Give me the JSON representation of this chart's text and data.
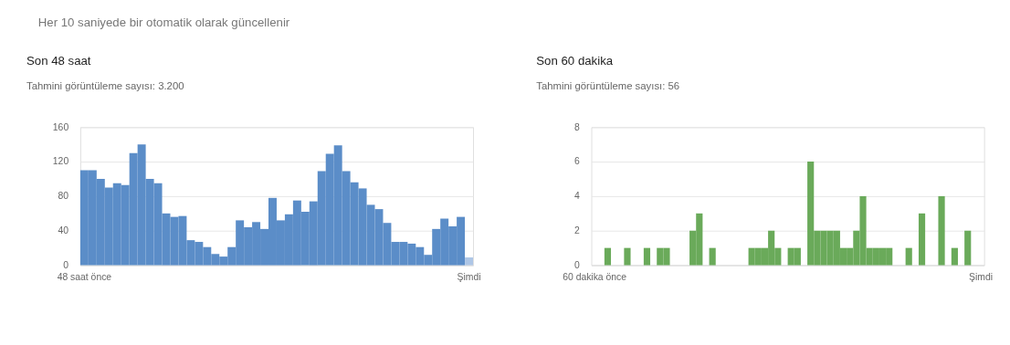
{
  "chart_data": [
    {
      "type": "bar",
      "title": "Son 48 saat",
      "subtitle": "Tahmini görüntüleme sayısı: 3.200",
      "annotations": [
        "Her 10 saniyede bir otomatik olarak güncellenir"
      ],
      "categories": [
        "48 saat önce",
        null,
        null,
        null,
        null,
        null,
        null,
        null,
        null,
        null,
        null,
        null,
        null,
        null,
        null,
        null,
        null,
        null,
        null,
        null,
        null,
        null,
        null,
        null,
        null,
        null,
        null,
        null,
        null,
        null,
        null,
        null,
        null,
        null,
        null,
        null,
        null,
        null,
        null,
        null,
        null,
        null,
        null,
        null,
        null,
        null,
        null,
        "Şimdi"
      ],
      "values": [
        110,
        110,
        100,
        90,
        95,
        93,
        130,
        140,
        100,
        95,
        60,
        56,
        57,
        29,
        27,
        21,
        13,
        10,
        21,
        52,
        44,
        50,
        42,
        78,
        52,
        59,
        75,
        62,
        74,
        109,
        129,
        139,
        109,
        96,
        89,
        70,
        65,
        49,
        27,
        27,
        25,
        21,
        12,
        42,
        54,
        45,
        56,
        9
      ],
      "colors": [
        "#5b8dc8",
        "#5b8dc8",
        "#5b8dc8",
        "#5b8dc8",
        "#5b8dc8",
        "#5b8dc8",
        "#5b8dc8",
        "#5b8dc8",
        "#5b8dc8",
        "#5b8dc8",
        "#5b8dc8",
        "#5b8dc8",
        "#5b8dc8",
        "#5b8dc8",
        "#5b8dc8",
        "#5b8dc8",
        "#5b8dc8",
        "#5b8dc8",
        "#5b8dc8",
        "#5b8dc8",
        "#5b8dc8",
        "#5b8dc8",
        "#5b8dc8",
        "#5b8dc8",
        "#5b8dc8",
        "#5b8dc8",
        "#5b8dc8",
        "#5b8dc8",
        "#5b8dc8",
        "#5b8dc8",
        "#5b8dc8",
        "#5b8dc8",
        "#5b8dc8",
        "#5b8dc8",
        "#5b8dc8",
        "#5b8dc8",
        "#5b8dc8",
        "#5b8dc8",
        "#5b8dc8",
        "#5b8dc8",
        "#5b8dc8",
        "#5b8dc8",
        "#5b8dc8",
        "#5b8dc8",
        "#5b8dc8",
        "#5b8dc8",
        "#5b8dc8",
        "#aec6e6"
      ],
      "ylim": [
        0,
        160
      ],
      "yticks": [
        0,
        40,
        80,
        120,
        160
      ],
      "grid": "y"
    },
    {
      "type": "bar",
      "title": "Son 60 dakika",
      "subtitle": "Tahmini görüntüleme sayısı: 56",
      "categories": [
        "60 dakika önce",
        null,
        null,
        null,
        null,
        null,
        null,
        null,
        null,
        null,
        null,
        null,
        null,
        null,
        null,
        null,
        null,
        null,
        null,
        null,
        null,
        null,
        null,
        null,
        null,
        null,
        null,
        null,
        null,
        null,
        null,
        null,
        null,
        null,
        null,
        null,
        null,
        null,
        null,
        null,
        null,
        null,
        null,
        null,
        null,
        null,
        null,
        null,
        null,
        null,
        null,
        null,
        null,
        null,
        null,
        null,
        null,
        null,
        null,
        "Şimdi"
      ],
      "values": [
        0,
        0,
        1,
        0,
        0,
        1,
        0,
        0,
        1,
        0,
        1,
        1,
        0,
        0,
        0,
        2,
        3,
        0,
        1,
        0,
        0,
        0,
        0,
        0,
        1,
        1,
        1,
        2,
        1,
        0,
        1,
        1,
        0,
        6,
        2,
        2,
        2,
        2,
        1,
        1,
        2,
        4,
        1,
        1,
        1,
        1,
        0,
        0,
        1,
        0,
        3,
        0,
        0,
        4,
        0,
        1,
        0,
        2,
        0,
        0
      ],
      "color": "#6aaa5a",
      "ylim": [
        0,
        8
      ],
      "yticks": [
        0,
        2,
        4,
        6,
        8
      ],
      "grid": "y"
    }
  ]
}
